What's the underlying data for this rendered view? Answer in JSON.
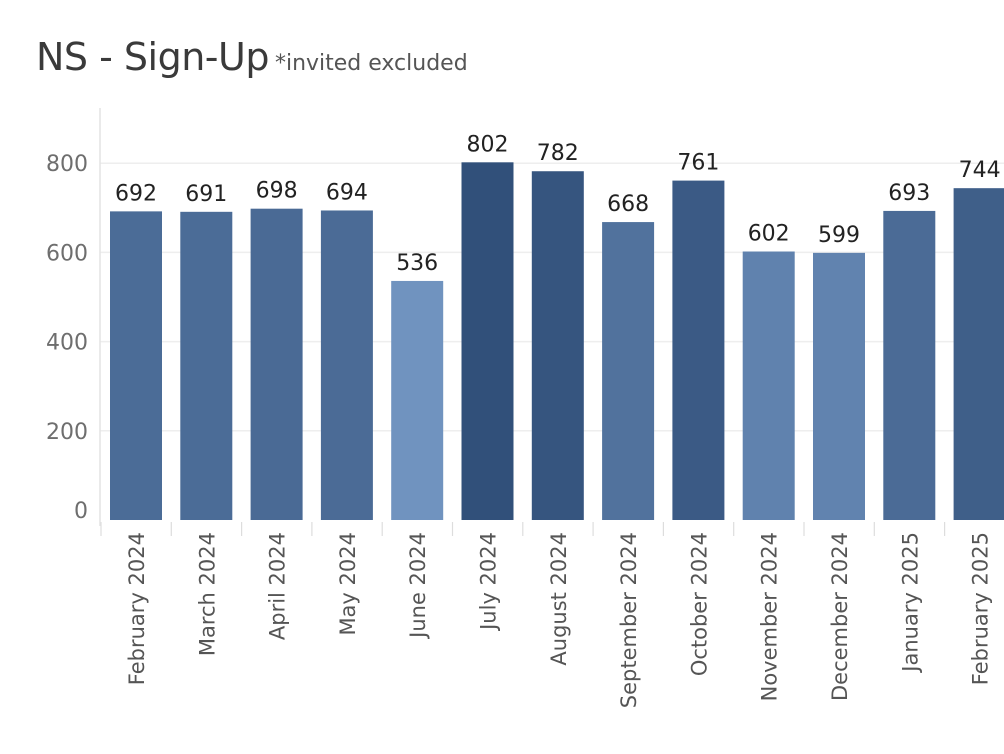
{
  "title": {
    "main": "NS - Sign-Up",
    "subtitle": "*invited excluded"
  },
  "chart_data": {
    "type": "bar",
    "categories": [
      "February 2024",
      "March 2024",
      "April 2024",
      "May 2024",
      "June 2024",
      "July 2024",
      "August 2024",
      "September 2024",
      "October 2024",
      "November 2024",
      "December 2024",
      "January 2025",
      "February 2025"
    ],
    "values": [
      692,
      691,
      698,
      694,
      536,
      802,
      782,
      668,
      761,
      602,
      599,
      693,
      744
    ],
    "y_ticks": [
      0,
      200,
      400,
      600,
      800
    ],
    "ylim": [
      0,
      900
    ],
    "grid": true,
    "color_scale": {
      "low": "#7093bf",
      "high": "#31507a"
    }
  }
}
